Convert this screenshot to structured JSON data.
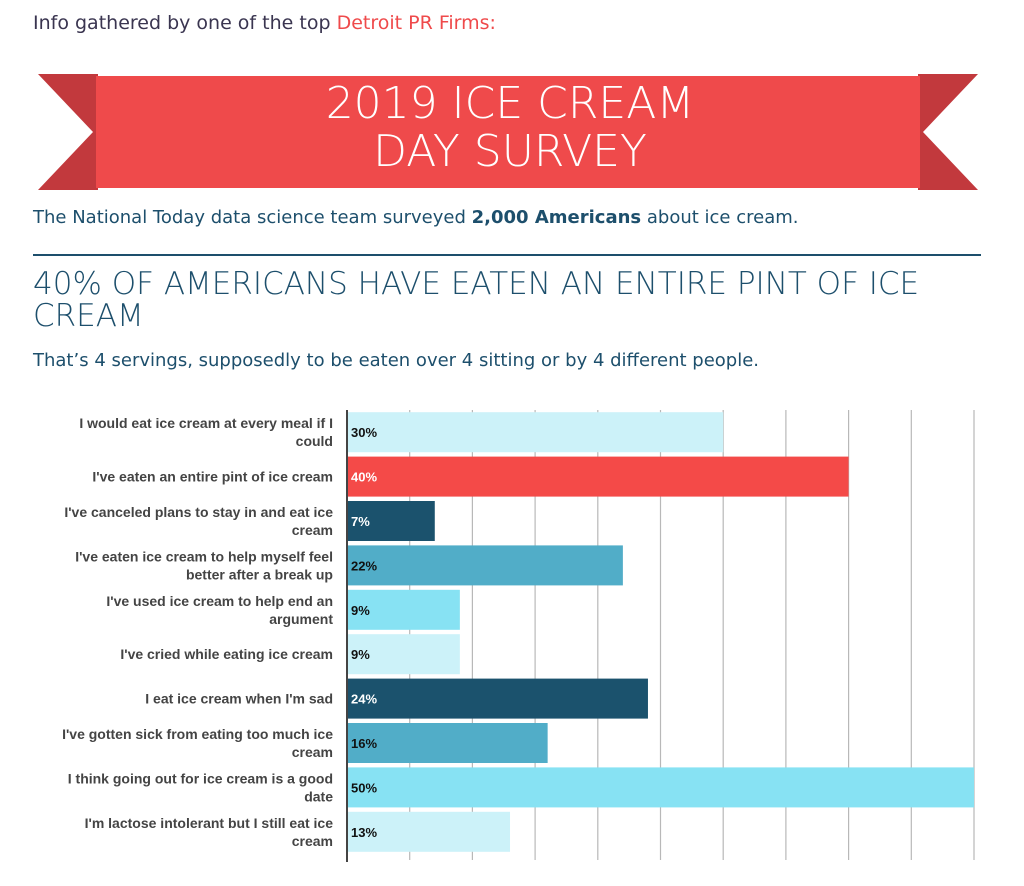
{
  "intro": {
    "text": "Info gathered by one of the top ",
    "link": "Detroit PR Firms:"
  },
  "banner": {
    "line1": "2019 ICE CREAM",
    "line2": "DAY SURVEY"
  },
  "subtitle": {
    "pre": "The National Today data science team surveyed ",
    "bold": "2,000 Americans",
    "post": " about ice cream."
  },
  "headline": "40% OF AMERICANS HAVE EATEN AN ENTIRE PINT OF ICE CREAM",
  "subheadline": "That’s 4 servings, supposedly to be eaten over 4 sitting or by 4 different people.",
  "colors": {
    "red": "#f44a48",
    "light": "#ccf2f9",
    "dark": "#1b526d",
    "mid": "#51adc8",
    "cyan": "#87e2f3",
    "banner": "#ef4a4b",
    "banner_dark": "#c2393d"
  },
  "chart_data": {
    "type": "bar",
    "orientation": "horizontal",
    "title": "",
    "xlabel": "",
    "ylabel": "",
    "xlim": [
      0,
      50
    ],
    "grid": true,
    "grid_step": 5,
    "categories": [
      [
        "I would eat ice cream at every meal if I",
        "could"
      ],
      [
        "I've eaten an entire pint of ice cream"
      ],
      [
        "I've canceled plans to stay in and eat ice",
        "cream"
      ],
      [
        "I've eaten ice cream to help myself feel",
        "better after a break up"
      ],
      [
        "I've used ice cream to help end an",
        "argument"
      ],
      [
        "I've cried while eating ice cream"
      ],
      [
        "I eat ice cream when I'm sad"
      ],
      [
        "I've gotten sick from eating too much ice",
        "cream"
      ],
      [
        "I think going out for ice cream is a good",
        "date"
      ],
      [
        "I'm lactose intolerant but I still eat ice",
        "cream"
      ]
    ],
    "values": [
      30,
      40,
      7,
      22,
      9,
      9,
      24,
      16,
      50,
      13
    ],
    "labels": [
      "30%",
      "40%",
      "7%",
      "22%",
      "9%",
      "9%",
      "24%",
      "16%",
      "50%",
      "13%"
    ],
    "bar_colors": [
      "light",
      "red",
      "dark",
      "mid",
      "cyan",
      "light",
      "dark",
      "mid",
      "cyan",
      "light"
    ],
    "label_colors": [
      "#111",
      "#fff",
      "#fff",
      "#111",
      "#111",
      "#111",
      "#fff",
      "#111",
      "#111",
      "#111"
    ]
  }
}
